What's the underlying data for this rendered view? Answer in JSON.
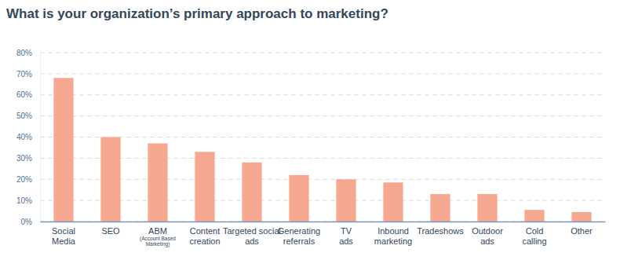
{
  "chart_data": {
    "type": "bar",
    "title": "What is your organization’s primary approach to marketing?",
    "categories": [
      "Social Media",
      "SEO",
      "ABM (Account Based Marketing)",
      "Content creation",
      "Targeted social ads",
      "Generating referrals",
      "TV ads",
      "Inbound marketing",
      "Tradeshows",
      "Outdoor ads",
      "Cold calling",
      "Other"
    ],
    "values": [
      68,
      40,
      37,
      33,
      28,
      22,
      20,
      18.5,
      13,
      13,
      5.5,
      4.5
    ],
    "color": "#f5a88f",
    "ylim": [
      0,
      80
    ],
    "yticks": [
      {
        "value": 0,
        "label": "0%"
      },
      {
        "value": 10,
        "label": "10%"
      },
      {
        "value": 20,
        "label": "20%"
      },
      {
        "value": 30,
        "label": "30%"
      },
      {
        "value": 40,
        "label": "40%"
      },
      {
        "value": 50,
        "label": "50%"
      },
      {
        "value": 60,
        "label": "60%"
      },
      {
        "value": 70,
        "label": "70%"
      },
      {
        "value": 80,
        "label": "80%"
      }
    ],
    "grid": true
  }
}
